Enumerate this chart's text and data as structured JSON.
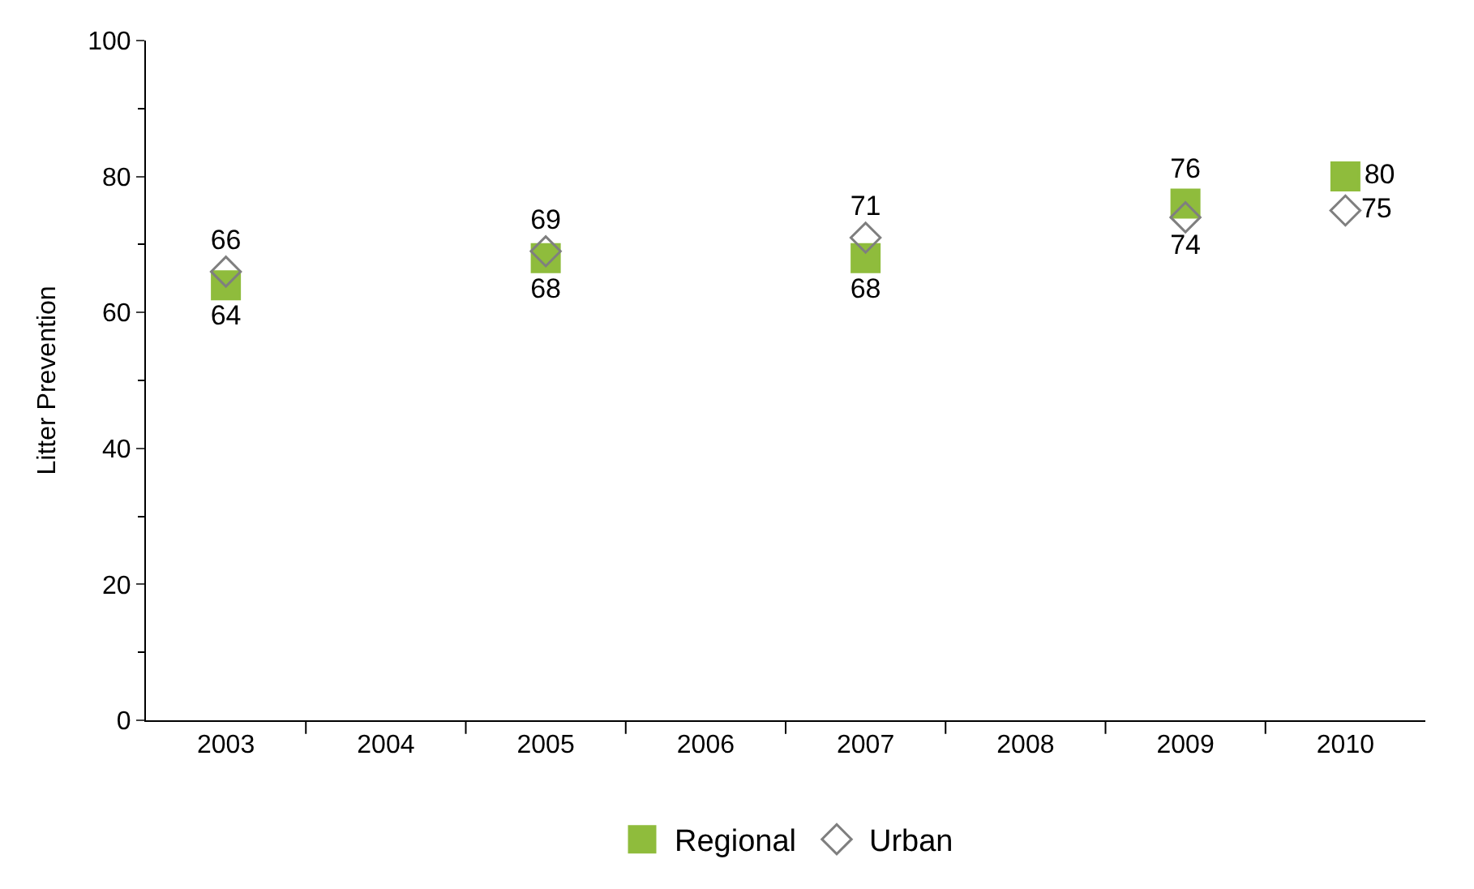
{
  "chart_data": {
    "type": "scatter",
    "ylabel": "Litter Prevention",
    "categories": [
      "2003",
      "2004",
      "2005",
      "2006",
      "2007",
      "2008",
      "2009",
      "2010"
    ],
    "series": [
      {
        "name": "Regional",
        "color": "#8fbc3c",
        "marker": "square",
        "values": [
          64,
          null,
          68,
          null,
          68,
          null,
          76,
          80
        ]
      },
      {
        "name": "Urban",
        "color": "#7f7f7f",
        "marker": "diamond",
        "values": [
          66,
          null,
          69,
          null,
          71,
          null,
          74,
          75
        ]
      }
    ],
    "ylim": [
      0,
      100
    ],
    "yticks": [
      0,
      20,
      40,
      60,
      80,
      100
    ],
    "legend": "bottom",
    "data_labels": true
  }
}
